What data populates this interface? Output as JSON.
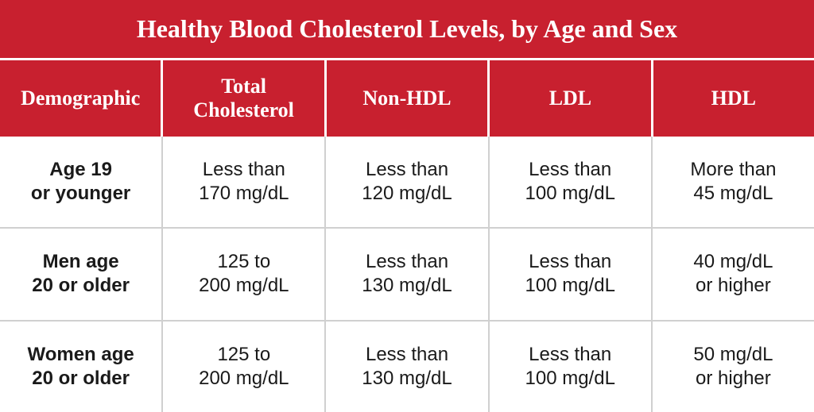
{
  "table": {
    "type": "table",
    "title": "Healthy Blood Cholesterol Levels, by Age and Sex",
    "header_bg_color": "#c8202f",
    "header_text_color": "#ffffff",
    "border_color": "#d0d0d0",
    "body_bg_color": "#ffffff",
    "body_text_color": "#1a1a1a",
    "title_fontsize": 32,
    "header_fontsize": 26,
    "cell_fontsize": 24,
    "columns": [
      "Demographic",
      "Total\nCholesterol",
      "Non-HDL",
      "LDL",
      "HDL"
    ],
    "rows": [
      {
        "demographic": "Age 19\nor younger",
        "total": "Less than\n170 mg/dL",
        "nonhdl": "Less than\n120 mg/dL",
        "ldl": "Less than\n100 mg/dL",
        "hdl": "More than\n45 mg/dL"
      },
      {
        "demographic": "Men age\n20 or older",
        "total": "125 to\n200 mg/dL",
        "nonhdl": "Less than\n130 mg/dL",
        "ldl": "Less than\n100 mg/dL",
        "hdl": "40 mg/dL\nor higher"
      },
      {
        "demographic": "Women age\n20 or older",
        "total": "125 to\n200 mg/dL",
        "nonhdl": "Less than\n130 mg/dL",
        "ldl": "Less than\n100 mg/dL",
        "hdl": "50 mg/dL\nor higher"
      }
    ]
  }
}
